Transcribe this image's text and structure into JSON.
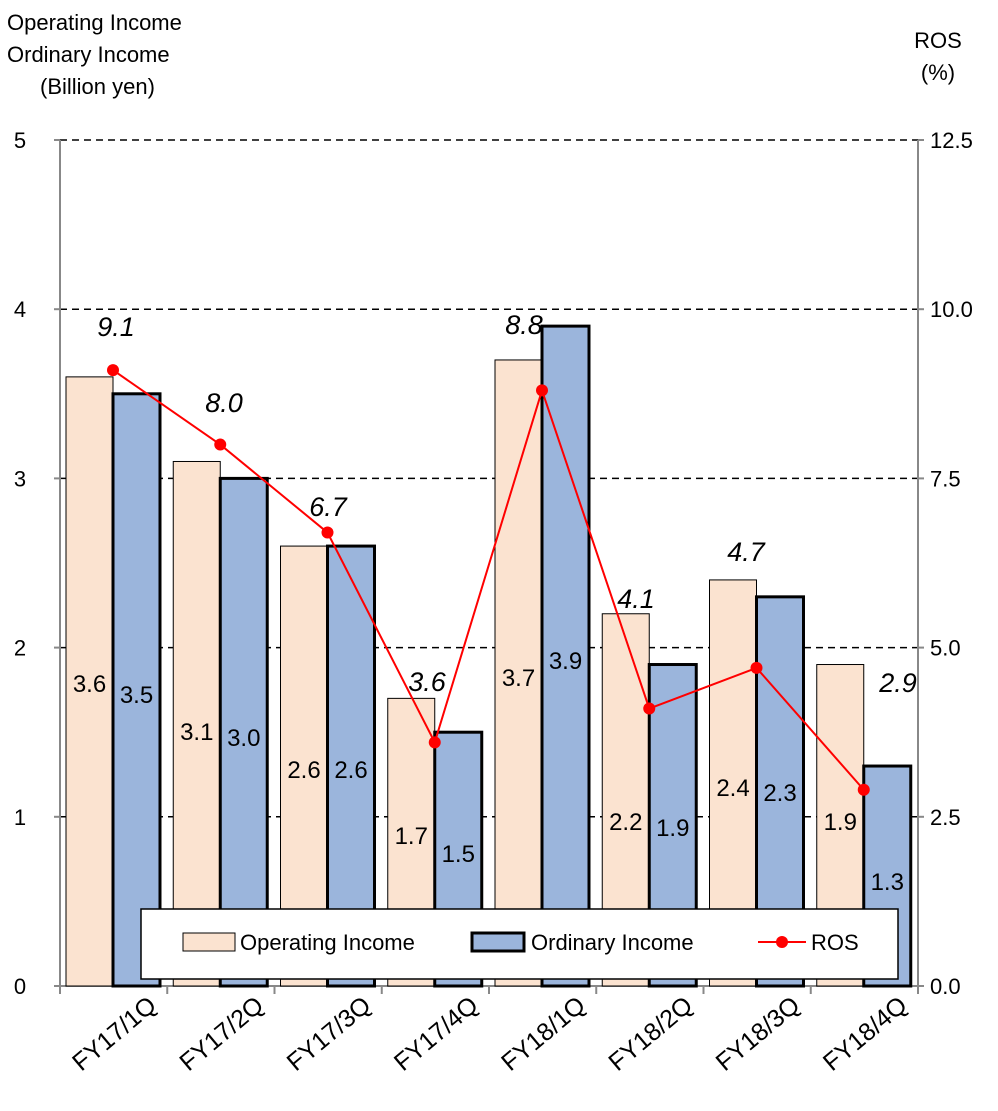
{
  "chart_data": {
    "type": "bar",
    "left_axis_title": [
      "Operating Income",
      "Ordinary Income",
      "(Billion yen)"
    ],
    "right_axis_title": [
      "ROS",
      "(%)"
    ],
    "categories": [
      "FY17/1Q",
      "FY17/2Q",
      "FY17/3Q",
      "FY17/4Q",
      "FY18/1Q",
      "FY18/2Q",
      "FY18/3Q",
      "FY18/4Q"
    ],
    "series": [
      {
        "name": "Operating Income",
        "type": "bar",
        "axis": "left",
        "color": "#FBE3D0",
        "values": [
          3.6,
          3.1,
          2.6,
          1.7,
          3.7,
          2.2,
          2.4,
          1.9
        ],
        "labels": [
          "3.6",
          "3.1",
          "2.6",
          "1.7",
          "3.7",
          "2.2",
          "2.4",
          "1.9"
        ]
      },
      {
        "name": "Ordinary Income",
        "type": "bar",
        "axis": "right-bar",
        "color": "#9BB5DC",
        "values": [
          3.5,
          3.0,
          2.6,
          1.5,
          3.9,
          1.9,
          2.3,
          1.3
        ],
        "labels": [
          "3.5",
          "3.0",
          "2.6",
          "1.5",
          "3.9",
          "1.9",
          "2.3",
          "1.3"
        ]
      },
      {
        "name": "ROS",
        "type": "line",
        "axis": "right",
        "color": "#FF0000",
        "values": [
          9.1,
          8.0,
          6.7,
          3.6,
          8.8,
          4.1,
          4.7,
          2.9
        ],
        "labels": [
          "9.1",
          "8.0",
          "6.7",
          "3.6",
          "8.8",
          "4.1",
          "4.7",
          "2.9"
        ]
      }
    ],
    "y_left": {
      "min": 0,
      "max": 5,
      "ticks": [
        "0",
        "1",
        "2",
        "3",
        "4",
        "5"
      ]
    },
    "y_right": {
      "min": 0,
      "max": 12.5,
      "ticks": [
        "0.0",
        "2.5",
        "5.0",
        "7.5",
        "10.0",
        "12.5"
      ]
    },
    "grid": "dashed horizontal",
    "legend": {
      "position": "bottom-inside",
      "items": [
        "Operating Income",
        "Ordinary Income",
        "ROS"
      ]
    }
  }
}
